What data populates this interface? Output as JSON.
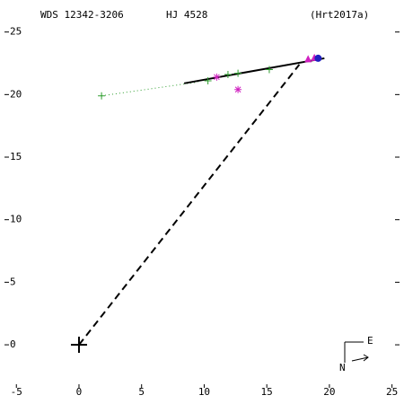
{
  "chart_data": {
    "type": "scatter",
    "title": "WDS 12342-3206",
    "subtitle": "HJ 4528",
    "reference": "(Hrt2017a)",
    "xlim": [
      -5.95,
      25.6
    ],
    "ylim": [
      -3.44,
      27.2
    ],
    "xticks": [
      -5,
      0,
      5,
      10,
      15,
      20,
      25
    ],
    "yticks": [
      0,
      5,
      10,
      15,
      20,
      25
    ],
    "compass": {
      "east": "E",
      "north": "N"
    },
    "series": [
      {
        "style": "dotted",
        "color": "#2e9e2e",
        "x": [
          1.8,
          9.5
        ],
        "values": [
          19.9,
          21.0
        ]
      },
      {
        "style": "solid",
        "color": "#000000",
        "x": [
          8.4,
          19.6
        ],
        "values": [
          20.9,
          22.9
        ]
      },
      {
        "style": "dashed",
        "color": "#000000",
        "x": [
          0,
          17.6
        ],
        "values": [
          0,
          22.4
        ]
      },
      {
        "marker": "plus",
        "color": "#2e9e2e",
        "x": [
          1.8,
          10.3,
          11.9,
          12.7,
          15.2
        ],
        "values": [
          19.9,
          21.1,
          21.6,
          21.7,
          22.0
        ]
      },
      {
        "marker": "asterisk",
        "color": "#d020c0",
        "x": [
          11.0,
          12.7
        ],
        "values": [
          21.4,
          20.4
        ]
      },
      {
        "marker": "triangle",
        "color": "#d020c0",
        "x": [
          18.3,
          18.8
        ],
        "values": [
          22.8,
          22.9
        ]
      },
      {
        "marker": "circle",
        "color": "#2020c0",
        "x": [
          19.1
        ],
        "values": [
          22.9
        ]
      },
      {
        "marker": "cross",
        "color": "#000000",
        "x": [
          0
        ],
        "values": [
          0
        ]
      }
    ]
  }
}
